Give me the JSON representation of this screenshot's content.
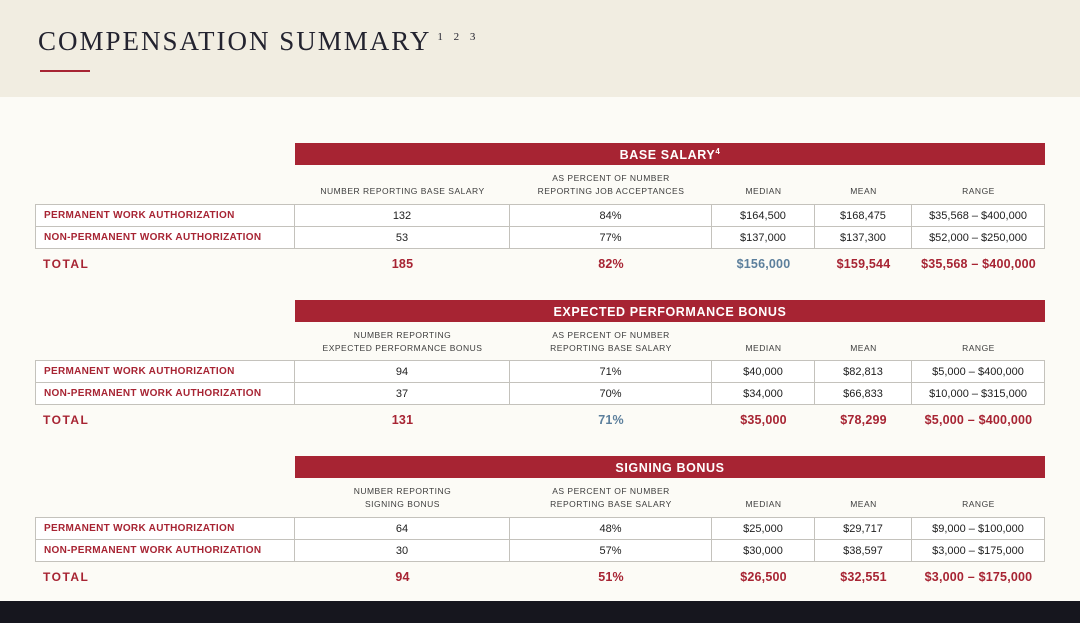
{
  "page": {
    "title": "COMPENSATION SUMMARY",
    "title_superscript": "1 2 3"
  },
  "colors": {
    "crimson": "#a72433",
    "accent_blue": "#5c7f9c",
    "top_band_cream": "#f1ede1",
    "footer_dark": "#16161e",
    "cell_border": "#c4c2bc"
  },
  "tables": [
    {
      "title": "BASE SALARY",
      "title_superscript": "4",
      "headers": [
        "NUMBER REPORTING BASE SALARY",
        "AS PERCENT OF NUMBER\nREPORTING JOB ACCEPTANCES",
        "MEDIAN",
        "MEAN",
        "RANGE"
      ],
      "rows": [
        {
          "label": "PERMANENT WORK AUTHORIZATION",
          "values": [
            "132",
            "84%",
            "$164,500",
            "$168,475",
            "$35,568 – $400,000"
          ]
        },
        {
          "label": "NON-PERMANENT WORK AUTHORIZATION",
          "values": [
            "53",
            "77%",
            "$137,000",
            "$137,300",
            "$52,000 – $250,000"
          ]
        }
      ],
      "total": {
        "label": "TOTAL",
        "values": [
          "185",
          "82%",
          "$156,000",
          "$159,544",
          "$35,568 – $400,000"
        ]
      }
    },
    {
      "title": "EXPECTED PERFORMANCE BONUS",
      "title_superscript": "",
      "headers": [
        "NUMBER REPORTING\nEXPECTED PERFORMANCE BONUS",
        "AS PERCENT OF NUMBER\nREPORTING BASE SALARY",
        "MEDIAN",
        "MEAN",
        "RANGE"
      ],
      "rows": [
        {
          "label": "PERMANENT WORK AUTHORIZATION",
          "values": [
            "94",
            "71%",
            "$40,000",
            "$82,813",
            "$5,000 – $400,000"
          ]
        },
        {
          "label": "NON-PERMANENT WORK AUTHORIZATION",
          "values": [
            "37",
            "70%",
            "$34,000",
            "$66,833",
            "$10,000 – $315,000"
          ]
        }
      ],
      "total": {
        "label": "TOTAL",
        "values": [
          "131",
          "71%",
          "$35,000",
          "$78,299",
          "$5,000 – $400,000"
        ]
      }
    },
    {
      "title": "SIGNING BONUS",
      "title_superscript": "",
      "headers": [
        "NUMBER REPORTING\nSIGNING BONUS",
        "AS PERCENT OF NUMBER\nREPORTING BASE SALARY",
        "MEDIAN",
        "MEAN",
        "RANGE"
      ],
      "rows": [
        {
          "label": "PERMANENT WORK AUTHORIZATION",
          "values": [
            "64",
            "48%",
            "$25,000",
            "$29,717",
            "$9,000 – $100,000"
          ]
        },
        {
          "label": "NON-PERMANENT WORK AUTHORIZATION",
          "values": [
            "30",
            "57%",
            "$30,000",
            "$38,597",
            "$3,000 – $175,000"
          ]
        }
      ],
      "total": {
        "label": "TOTAL",
        "values": [
          "94",
          "51%",
          "$26,500",
          "$32,551",
          "$3,000 – $175,000"
        ]
      }
    }
  ]
}
